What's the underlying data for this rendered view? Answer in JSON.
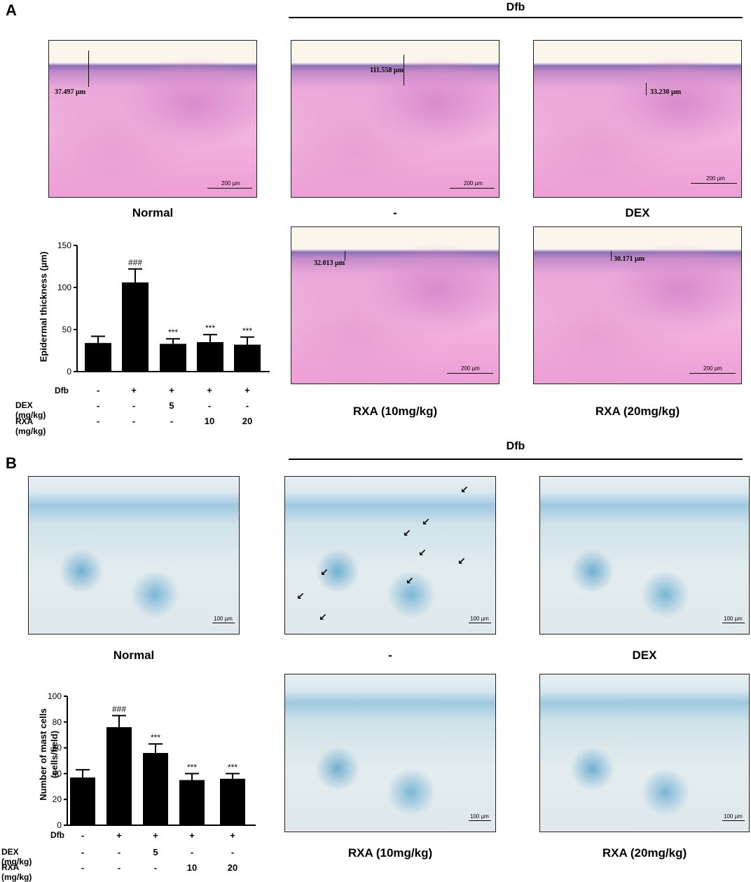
{
  "panels": {
    "A": {
      "letter": "A",
      "dfb_header": "Dfb",
      "images": [
        {
          "caption": "Normal",
          "measurement": "37.497 µm",
          "scale": "200 µm"
        },
        {
          "caption": "-",
          "measurement": "111.558 µm",
          "scale": "200 µm"
        },
        {
          "caption": "DEX",
          "measurement": "33.230 µm",
          "scale": "200 µm"
        },
        {
          "caption": "RXA (10mg/kg)",
          "measurement": "32.013 µm",
          "scale": "200 µm"
        },
        {
          "caption": "RXA (20mg/kg)",
          "measurement": "30.171 µm",
          "scale": "200 µm"
        }
      ]
    },
    "B": {
      "letter": "B",
      "dfb_header": "Dfb",
      "images": [
        {
          "caption": "Normal",
          "scale": "100 µm"
        },
        {
          "caption": "-",
          "scale": "100 µm"
        },
        {
          "caption": "DEX",
          "scale": "100 µm"
        },
        {
          "caption": "RXA (10mg/kg)",
          "scale": "100 µm"
        },
        {
          "caption": "RXA (20mg/kg)",
          "scale": "100 µm"
        }
      ]
    }
  },
  "treatment_table": {
    "rows": [
      {
        "label": "Dfb",
        "values": [
          "-",
          "+",
          "+",
          "+",
          "+"
        ]
      },
      {
        "label": "DEX (mg/kg)",
        "values": [
          "-",
          "-",
          "5",
          "-",
          "-"
        ]
      },
      {
        "label": "RXA (mg/kg)",
        "values": [
          "-",
          "-",
          "-",
          "10",
          "20"
        ]
      }
    ]
  },
  "chart_data": [
    {
      "type": "bar",
      "title": "",
      "ylabel": "Epidermal thickness (µm)",
      "ylim": [
        0,
        150
      ],
      "yticks": [
        "0",
        "50",
        "100",
        "150"
      ],
      "categories": [
        "Normal",
        "Dfb",
        "Dfb+DEX",
        "Dfb+RXA10",
        "Dfb+RXA20"
      ],
      "values": [
        34,
        106,
        33,
        35,
        32
      ],
      "errors": [
        8,
        16,
        6,
        9,
        9
      ],
      "significance": [
        "",
        "###",
        "***",
        "***",
        "***"
      ],
      "bar_color": "#000000"
    },
    {
      "type": "bar",
      "title": "",
      "ylabel_lines": [
        "Number of mast cells",
        "(cells/field)"
      ],
      "ylim": [
        0,
        100
      ],
      "yticks": [
        "0",
        "20",
        "40",
        "60",
        "80",
        "100"
      ],
      "categories": [
        "Normal",
        "Dfb",
        "Dfb+DEX",
        "Dfb+RXA10",
        "Dfb+RXA20"
      ],
      "values": [
        37,
        76,
        56,
        35,
        36
      ],
      "errors": [
        6,
        9,
        7,
        5,
        4
      ],
      "significance": [
        "",
        "###",
        "***",
        "***",
        "***"
      ],
      "bar_color": "#000000"
    }
  ]
}
